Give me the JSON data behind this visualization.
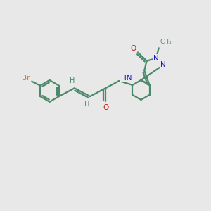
{
  "background_color": "#e8e8e8",
  "bond_color": "#4a8a6a",
  "br_color": "#c87820",
  "n_color": "#1818c8",
  "o_color": "#c81818",
  "lw": 1.6,
  "figsize": [
    3.0,
    3.0
  ],
  "dpi": 100,
  "label_fs": 7.5,
  "xlim": [
    0,
    10
  ],
  "ylim": [
    0,
    10
  ]
}
